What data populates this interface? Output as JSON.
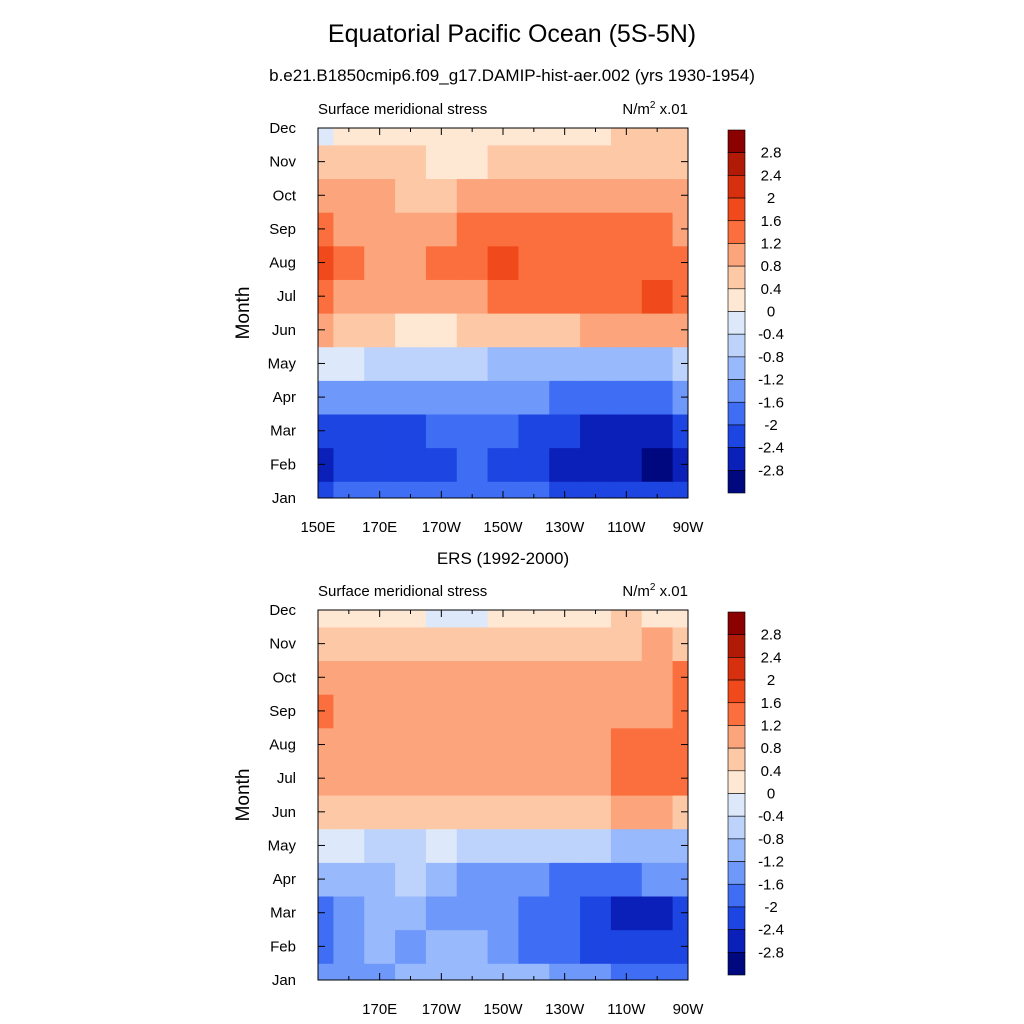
{
  "title": "Equatorial Pacific Ocean (5S-5N)",
  "subtitle": "b.e21.B1850cmip6.f09_g17.DAMIP-hist-aer.002 (yrs 1930-1954)",
  "colorbar": {
    "labels": [
      "2.8",
      "2.4",
      "2",
      "1.6",
      "1.2",
      "0.8",
      "0.4",
      "0",
      "-0.4",
      "-0.8",
      "-1.2",
      "-1.6",
      "-2",
      "-2.4",
      "-2.8"
    ],
    "colors_top_to_bottom": [
      "#8b0000",
      "#b21a08",
      "#d7300f",
      "#f04a1c",
      "#fb6f3e",
      "#fca57d",
      "#fdc8a6",
      "#fee8d4",
      "#dde9fb",
      "#bdd3fc",
      "#98b9fb",
      "#6f98fb",
      "#3f6ef5",
      "#1c45e2",
      "#0b1fb9",
      "#00087f"
    ]
  },
  "chart_data": [
    {
      "type": "heatmap",
      "panel_title": "",
      "left_label": "Surface meridional stress",
      "right_label_main": "N/m",
      "right_label_sup": "2",
      "right_label_rest": " x.01",
      "ylabel": "Month",
      "yticks": [
        "Jan",
        "Feb",
        "Mar",
        "Apr",
        "May",
        "Jun",
        "Jul",
        "Aug",
        "Sep",
        "Oct",
        "Nov",
        "Dec"
      ],
      "xticks": [
        "150E",
        "170E",
        "170W",
        "150W",
        "130W",
        "110W",
        "90W"
      ],
      "x": [
        150,
        160,
        170,
        180,
        190,
        200,
        210,
        220,
        230,
        240,
        250,
        260,
        270
      ],
      "values": [
        [
          -2.2,
          -2.0,
          -1.9,
          -1.8,
          -1.8,
          -1.9,
          -1.9,
          -2.0,
          -2.1,
          -2.2,
          -2.3,
          -2.3,
          -2.1
        ],
        [
          -2.7,
          -2.4,
          -2.3,
          -2.2,
          -2.1,
          -2.0,
          -2.1,
          -2.3,
          -2.5,
          -2.6,
          -2.8,
          -2.9,
          -2.5
        ],
        [
          -2.4,
          -2.3,
          -2.2,
          -2.3,
          -2.0,
          -1.8,
          -1.9,
          -2.2,
          -2.4,
          -2.6,
          -2.7,
          -2.6,
          -2.4
        ],
        [
          -1.6,
          -1.6,
          -1.5,
          -1.4,
          -1.3,
          -1.4,
          -1.4,
          -1.5,
          -1.7,
          -1.8,
          -1.8,
          -1.7,
          -1.6
        ],
        [
          -0.2,
          -0.4,
          -0.6,
          -0.7,
          -0.8,
          -0.8,
          -0.9,
          -0.9,
          -1.0,
          -1.0,
          -1.0,
          -0.9,
          -0.8
        ],
        [
          1.0,
          0.6,
          0.4,
          0.3,
          0.3,
          0.4,
          0.5,
          0.6,
          0.7,
          0.8,
          0.9,
          1.0,
          0.9
        ],
        [
          1.3,
          1.1,
          1.0,
          0.9,
          1.0,
          1.1,
          1.2,
          1.3,
          1.4,
          1.5,
          1.5,
          1.7,
          1.3
        ],
        [
          1.7,
          1.2,
          1.1,
          1.0,
          1.3,
          1.4,
          1.6,
          1.5,
          1.5,
          1.5,
          1.4,
          1.3,
          1.2
        ],
        [
          1.4,
          1.1,
          1.0,
          0.9,
          1.0,
          1.2,
          1.3,
          1.3,
          1.2,
          1.2,
          1.3,
          1.3,
          1.0
        ],
        [
          1.1,
          0.9,
          0.8,
          0.7,
          0.7,
          0.8,
          0.9,
          0.9,
          0.8,
          0.8,
          0.9,
          0.9,
          0.8
        ],
        [
          0.6,
          0.5,
          0.4,
          0.4,
          0.3,
          0.3,
          0.4,
          0.4,
          0.4,
          0.4,
          0.5,
          0.5,
          0.6
        ],
        [
          -0.1,
          0.1,
          0.2,
          0.2,
          0.2,
          0.2,
          0.2,
          0.2,
          0.3,
          0.3,
          0.4,
          0.4,
          0.5
        ]
      ]
    },
    {
      "type": "heatmap",
      "panel_title": "ERS (1992-2000)",
      "left_label": "Surface meridional stress",
      "right_label_main": "N/m",
      "right_label_sup": "2",
      "right_label_rest": " x.01",
      "ylabel": "Month",
      "yticks": [
        "Jan",
        "Feb",
        "Mar",
        "Apr",
        "May",
        "Jun",
        "Jul",
        "Aug",
        "Sep",
        "Oct",
        "Nov",
        "Dec"
      ],
      "xticks": [
        "170E",
        "170W",
        "150W",
        "130W",
        "110W",
        "90W"
      ],
      "x": [
        150,
        160,
        170,
        180,
        190,
        200,
        210,
        220,
        230,
        240,
        250,
        260,
        270
      ],
      "values": [
        [
          -1.5,
          -1.4,
          -1.3,
          -1.2,
          -1.1,
          -1.1,
          -1.2,
          -1.2,
          -1.3,
          -1.5,
          -1.7,
          -1.9,
          -2.0
        ],
        [
          -1.8,
          -1.5,
          -1.2,
          -1.3,
          -1.2,
          -1.1,
          -1.4,
          -1.7,
          -1.9,
          -2.2,
          -2.3,
          -2.4,
          -2.4
        ],
        [
          -1.9,
          -1.6,
          -1.2,
          -1.2,
          -1.3,
          -1.3,
          -1.5,
          -1.7,
          -2.0,
          -2.4,
          -2.5,
          -2.6,
          -2.2
        ],
        [
          -1.0,
          -0.9,
          -0.9,
          -0.8,
          -1.2,
          -1.3,
          -1.5,
          -1.6,
          -1.7,
          -1.7,
          -1.7,
          -1.6,
          -1.5
        ],
        [
          -0.3,
          -0.4,
          -0.5,
          -0.5,
          -0.4,
          -0.5,
          -0.5,
          -0.6,
          -0.7,
          -0.8,
          -0.9,
          -1.0,
          -1.0
        ],
        [
          0.4,
          0.5,
          0.5,
          0.4,
          0.6,
          0.6,
          0.5,
          0.5,
          0.6,
          0.5,
          0.8,
          0.8,
          0.6
        ],
        [
          0.9,
          0.9,
          0.8,
          0.8,
          0.8,
          0.9,
          0.9,
          0.8,
          0.9,
          1.0,
          1.3,
          1.4,
          1.2
        ],
        [
          1.1,
          1.0,
          0.9,
          0.9,
          1.0,
          1.0,
          1.0,
          0.9,
          0.9,
          0.9,
          1.3,
          1.3,
          1.2
        ],
        [
          1.4,
          1.1,
          0.9,
          0.9,
          1.0,
          1.0,
          1.0,
          1.0,
          1.0,
          0.9,
          1.0,
          1.1,
          1.3
        ],
        [
          1.0,
          1.0,
          0.9,
          1.1,
          1.0,
          0.9,
          1.0,
          0.9,
          0.9,
          0.8,
          0.9,
          1.0,
          1.2
        ],
        [
          0.5,
          0.6,
          0.6,
          0.6,
          0.6,
          0.5,
          0.5,
          0.4,
          0.5,
          0.5,
          0.7,
          0.8,
          0.7
        ],
        [
          0.1,
          0.2,
          0.0,
          0.2,
          -0.1,
          -0.2,
          0.2,
          0.3,
          0.3,
          0.3,
          0.4,
          0.3,
          0.2
        ]
      ]
    }
  ]
}
